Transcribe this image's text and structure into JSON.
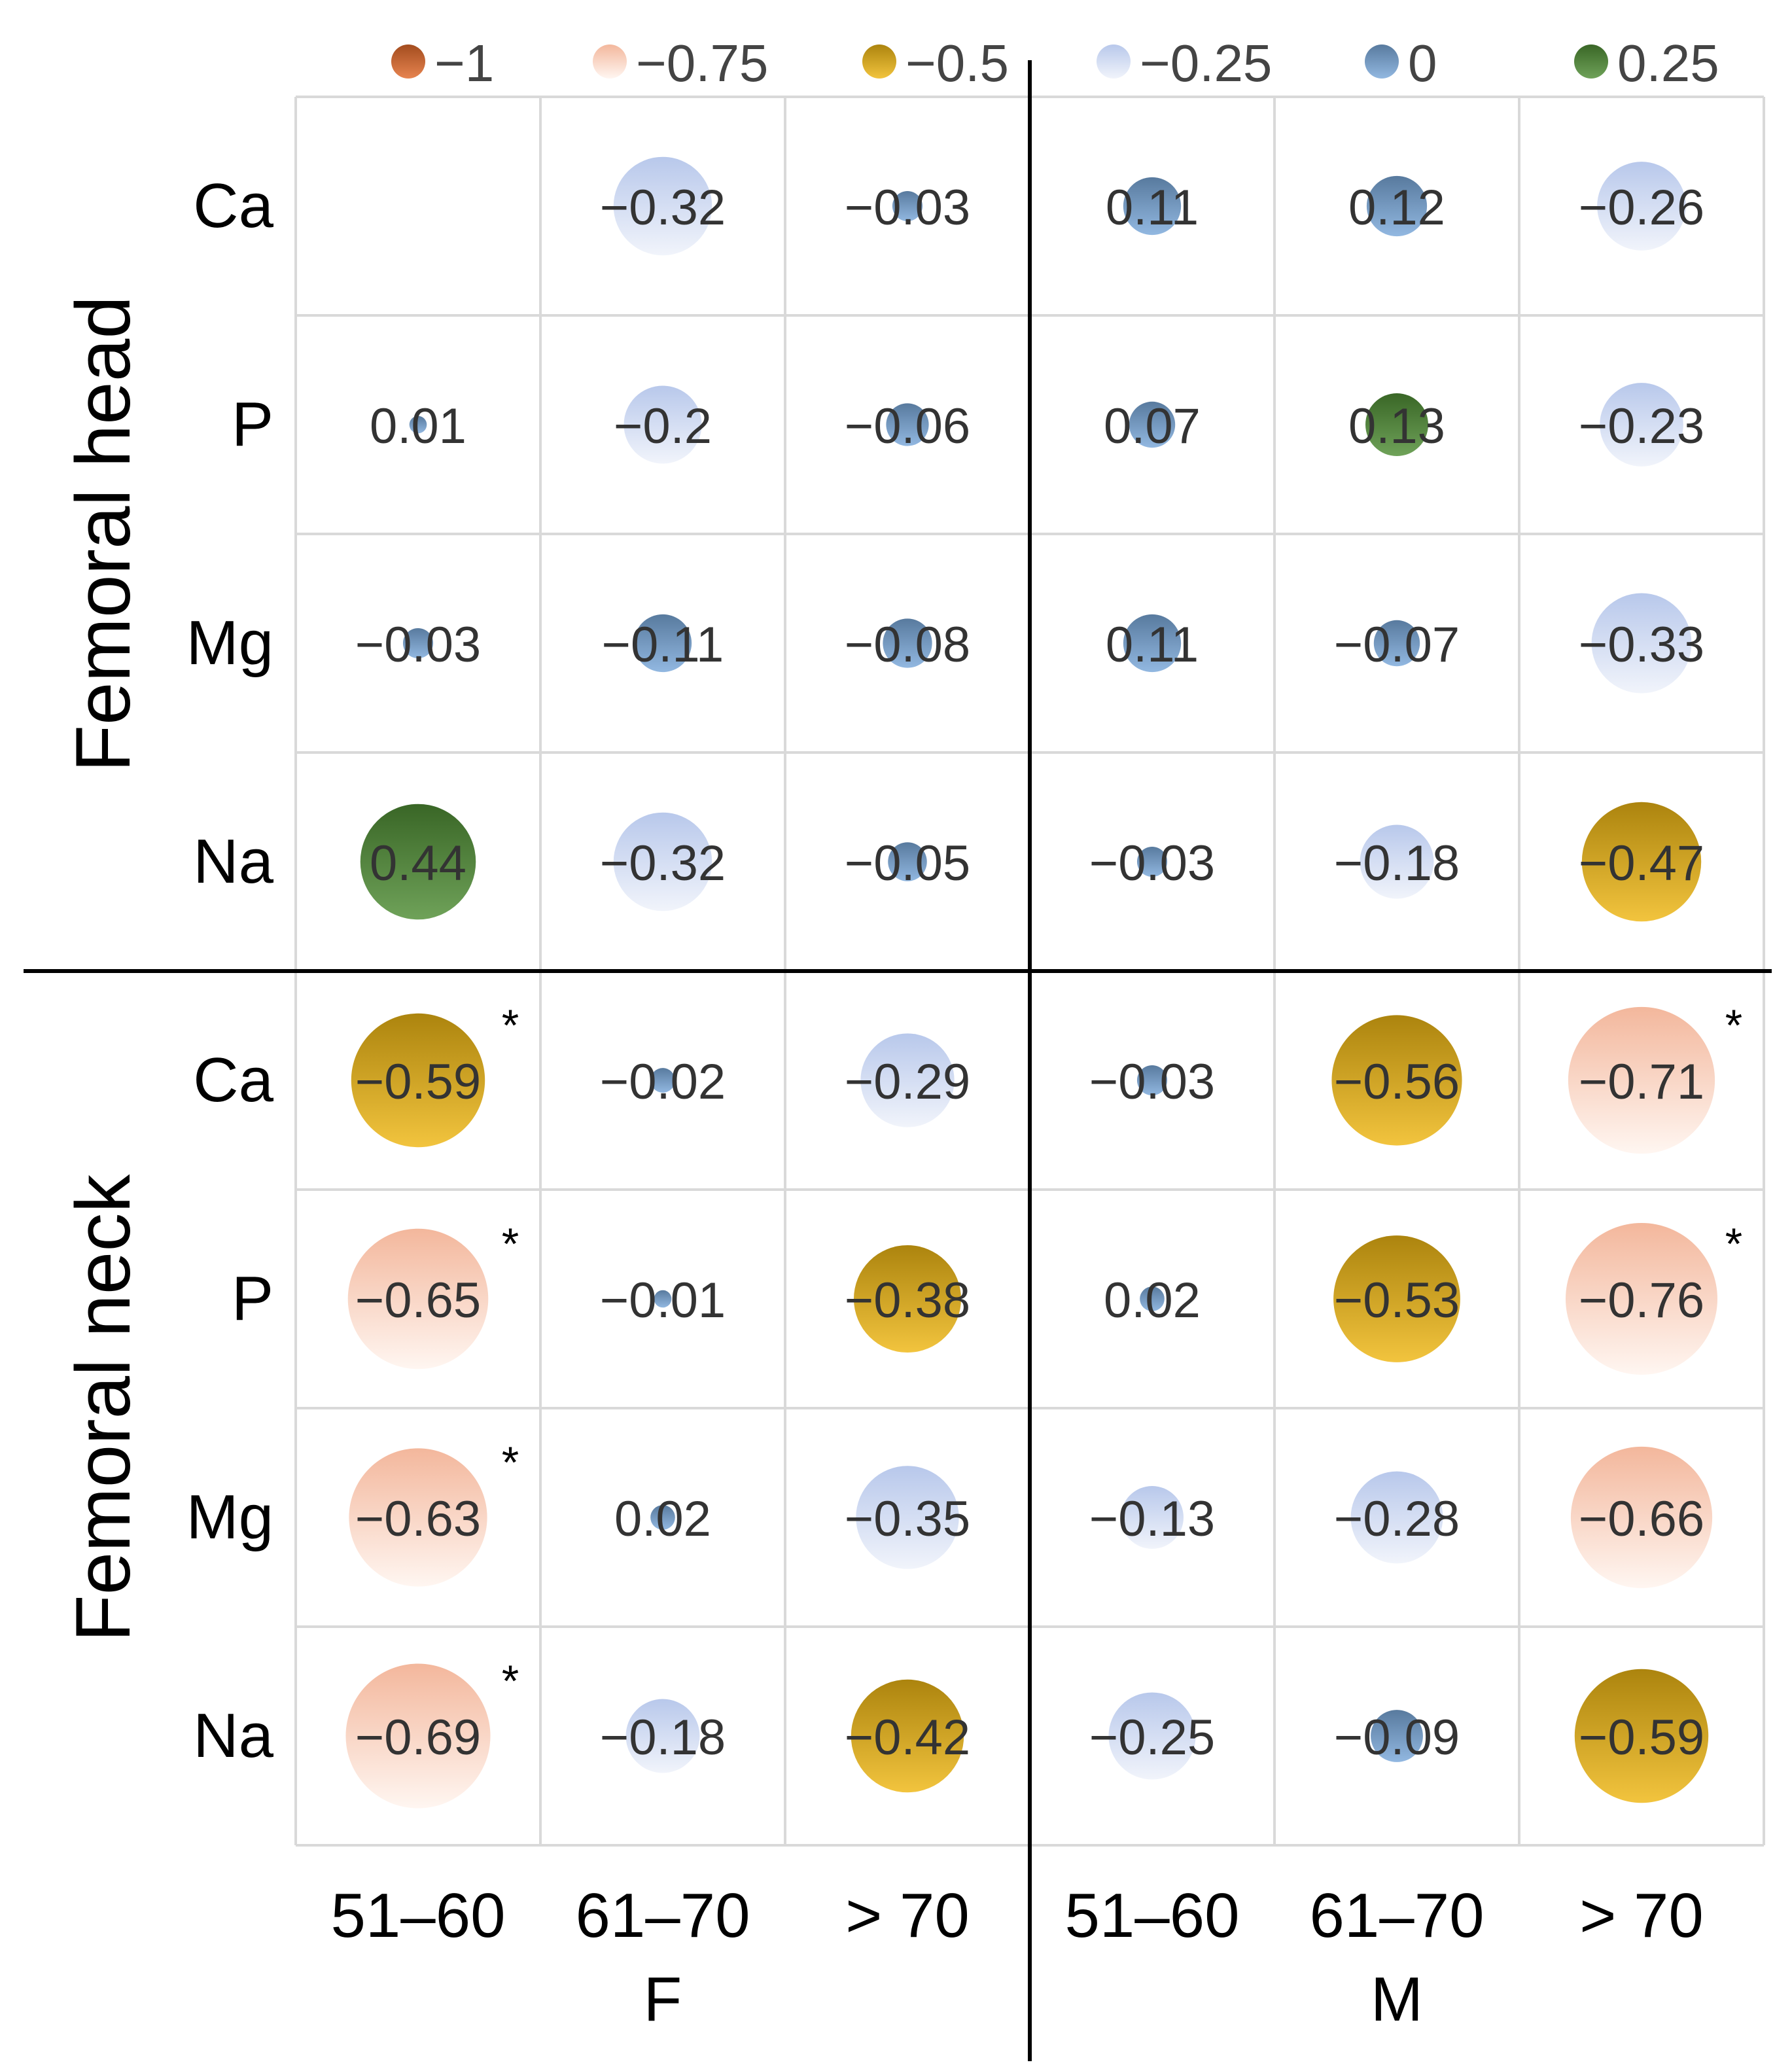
{
  "chart_data": {
    "type": "bubble-matrix",
    "title": "",
    "legend": {
      "position": "top",
      "entries": [
        {
          "label": "−1",
          "value": -1,
          "color": "#e2692a"
        },
        {
          "label": "−0.75",
          "value": -0.75,
          "color": "#f7c6ae"
        },
        {
          "label": "−0.5",
          "value": -0.5,
          "color": "#efb714"
        },
        {
          "label": "−0.25",
          "value": -0.25,
          "color": "#cfd9ef"
        },
        {
          "label": "0",
          "value": 0,
          "color": "#7aa9db"
        },
        {
          "label": "0.25",
          "value": 0.25,
          "color": "#4f8d35"
        }
      ]
    },
    "row_groups": [
      {
        "label": "Femoral head",
        "rows": [
          "Ca",
          "P",
          "Mg",
          "Na"
        ]
      },
      {
        "label": "Femoral neck",
        "rows": [
          "Ca",
          "P",
          "Mg",
          "Na"
        ]
      }
    ],
    "column_groups": [
      {
        "label": "F",
        "columns": [
          "51–60",
          "61–70",
          "> 70"
        ]
      },
      {
        "label": "M",
        "columns": [
          "51–60",
          "61–70",
          "> 70"
        ]
      }
    ],
    "cells": [
      [
        null,
        "−0.32",
        "−0.03",
        "0.11",
        "0.12",
        "−0.26"
      ],
      [
        "0.01",
        "−0.2",
        "−0.06",
        "0.07",
        "0.13",
        "−0.23"
      ],
      [
        "−0.03",
        "−0.11",
        "−0.08",
        "0.11",
        "−0.07",
        "−0.33"
      ],
      [
        "0.44",
        "−0.32",
        "−0.05",
        "−0.03",
        "−0.18",
        "−0.47"
      ],
      [
        "−0.59",
        "−0.02",
        "−0.29",
        "−0.03",
        "−0.56",
        "−0.71"
      ],
      [
        "−0.65",
        "−0.01",
        "−0.38",
        "0.02",
        "−0.53",
        "−0.76"
      ],
      [
        "−0.63",
        "0.02",
        "−0.35",
        "−0.13",
        "−0.28",
        "−0.66"
      ],
      [
        "−0.69",
        "−0.18",
        "−0.42",
        "−0.25",
        "−0.09",
        "−0.59"
      ]
    ],
    "values": [
      [
        null,
        -0.32,
        -0.03,
        0.11,
        0.12,
        -0.26
      ],
      [
        0.01,
        -0.2,
        -0.06,
        0.07,
        0.13,
        -0.23
      ],
      [
        -0.03,
        -0.11,
        -0.08,
        0.11,
        -0.07,
        -0.33
      ],
      [
        0.44,
        -0.32,
        -0.05,
        -0.03,
        -0.18,
        -0.47
      ],
      [
        -0.59,
        -0.02,
        -0.29,
        -0.03,
        -0.56,
        -0.71
      ],
      [
        -0.65,
        -0.01,
        -0.38,
        0.02,
        -0.53,
        -0.76
      ],
      [
        -0.63,
        0.02,
        -0.35,
        -0.13,
        -0.28,
        -0.66
      ],
      [
        -0.69,
        -0.18,
        -0.42,
        -0.25,
        -0.09,
        -0.59
      ]
    ],
    "significant": [
      [
        false,
        false,
        false,
        false,
        false,
        false
      ],
      [
        false,
        false,
        false,
        false,
        false,
        false
      ],
      [
        false,
        false,
        false,
        false,
        false,
        false
      ],
      [
        false,
        false,
        false,
        false,
        false,
        false
      ],
      [
        true,
        false,
        false,
        false,
        false,
        true
      ],
      [
        true,
        false,
        false,
        false,
        false,
        true
      ],
      [
        true,
        false,
        false,
        false,
        false,
        false
      ],
      [
        true,
        false,
        false,
        false,
        false,
        false
      ]
    ],
    "significance_marker": "*",
    "grid": true
  }
}
